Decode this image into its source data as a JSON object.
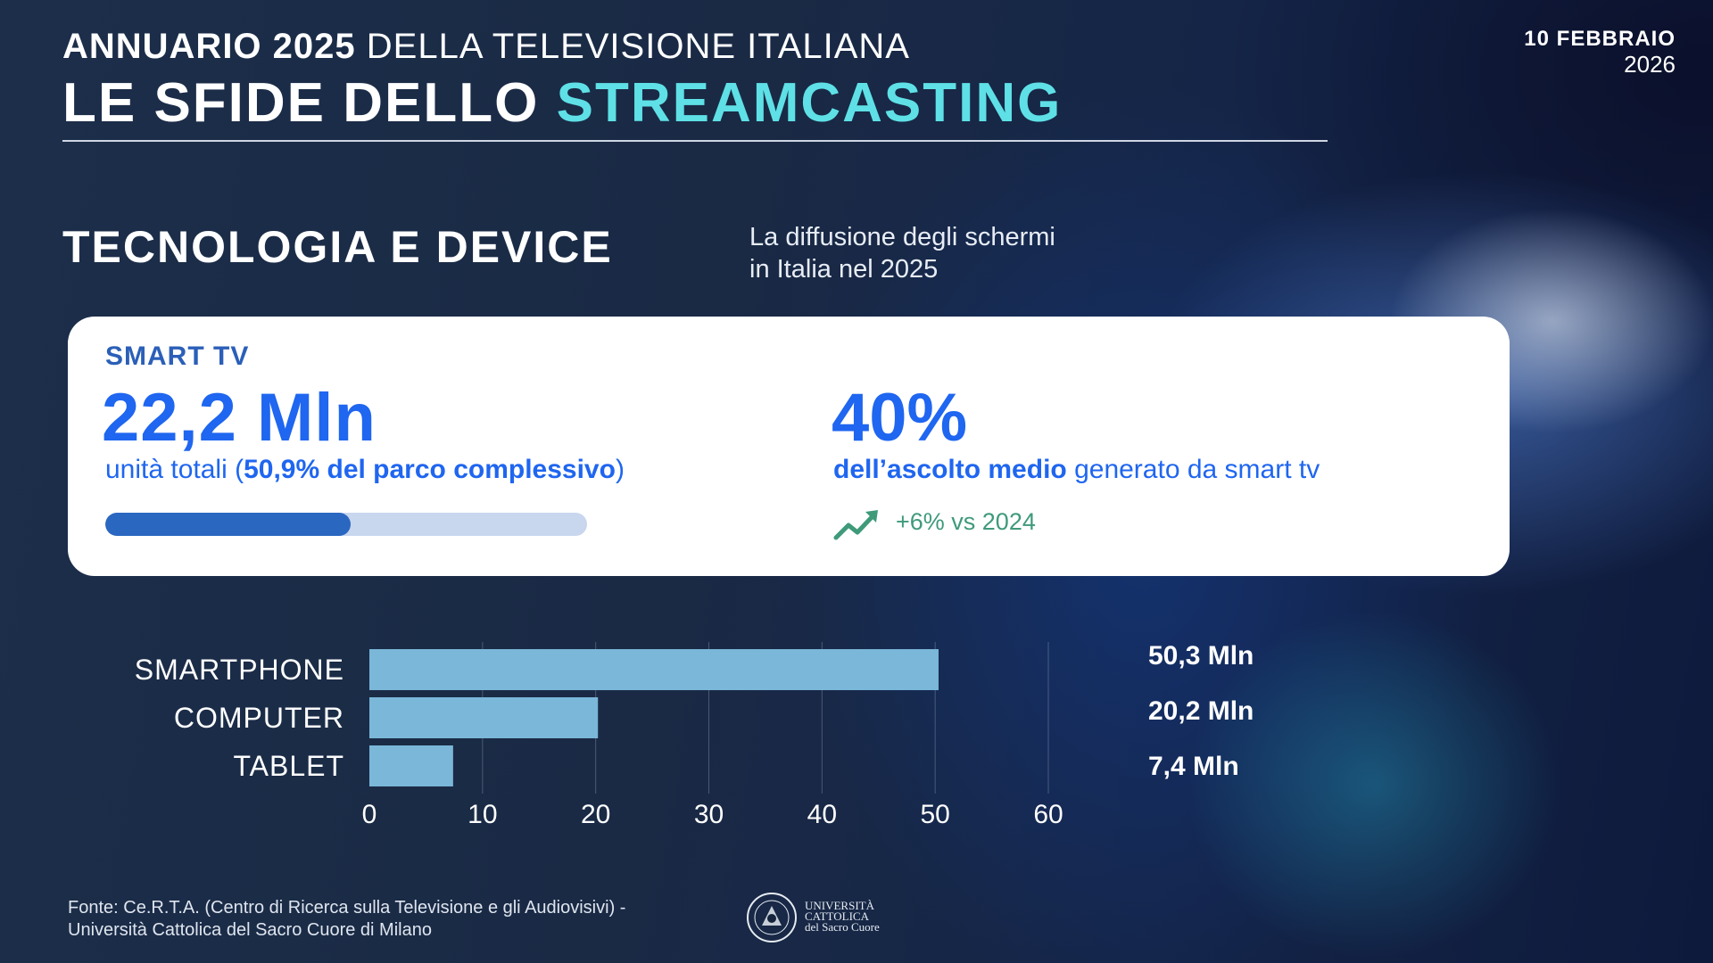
{
  "header": {
    "top_bold": "ANNUARIO 2025",
    "top_light": "DELLA TELEVISIONE ITALIANA",
    "title_main": "LE SFIDE DELLO",
    "title_accent": "STREAMCASTING",
    "date_line1": "10 FEBBRAIO",
    "date_line2": "2026"
  },
  "section": {
    "title": "TECNOLOGIA E DEVICE",
    "subtitle_line1": "La diffusione degli schermi",
    "subtitle_line2": "in Italia nel 2025"
  },
  "smart_tv": {
    "label": "SMART TV",
    "units": "22,2 Mln",
    "desc_prefix": "unità totali (",
    "desc_bold": "50,9% del parco complessivo",
    "desc_suffix": ")",
    "share_fraction": 0.509,
    "share_value": "40%",
    "share_desc_bold": "dell’ascolto medio",
    "share_desc_rest": " generato da smart tv",
    "trend_icon": "trend-up-icon",
    "trend_text": "+6% vs 2024"
  },
  "chart_data": {
    "type": "bar",
    "orientation": "horizontal",
    "categories": [
      "SMARTPHONE",
      "COMPUTER",
      "TABLET"
    ],
    "values": [
      50.3,
      20.2,
      7.4
    ],
    "value_labels": [
      "50,3 Mln",
      "20,2 Mln",
      "7,4 Mln"
    ],
    "xlim": [
      0,
      60
    ],
    "xticks": [
      "0",
      "10",
      "20",
      "30",
      "40",
      "50",
      "60"
    ],
    "grid": true,
    "bar_color": "#7ab7d9"
  },
  "footer": {
    "source_line1": "Fonte: Ce.R.T.A. (Centro di Ricerca sulla Televisione e gli Audiovisivi) -",
    "source_line2": "Università Cattolica del Sacro Cuore di Milano",
    "logo_line1": "UNIVERSITÀ",
    "logo_line2": "CATTOLICA",
    "logo_line3": "del Sacro Cuore"
  }
}
